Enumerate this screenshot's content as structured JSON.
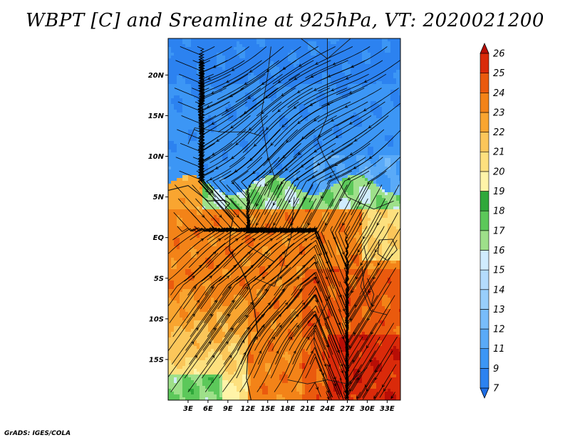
{
  "title": "WBPT [C] and Sreamline at 925hPa, VT: 2020021200",
  "credit": "GrADS: IGES/COLA",
  "map": {
    "lat_ticks": [
      "20N",
      "15N",
      "10N",
      "5N",
      "EQ",
      "5S",
      "10S",
      "15S"
    ],
    "lon_ticks": [
      "3E",
      "6E",
      "9E",
      "12E",
      "15E",
      "18E",
      "21E",
      "24E",
      "27E",
      "30E",
      "33E"
    ],
    "lon_range": [
      0,
      35
    ],
    "lat_range": [
      -20,
      24.5
    ]
  },
  "colorbar": {
    "levels": [
      "7",
      "9",
      "11",
      "12",
      "13",
      "14",
      "15",
      "16",
      "17",
      "18",
      "19",
      "20",
      "21",
      "22",
      "23",
      "24",
      "25",
      "26"
    ],
    "colors": [
      "#1e6ee6",
      "#2c82f0",
      "#3c96f5",
      "#5aaaf8",
      "#78bcfa",
      "#98cefc",
      "#b4dcfd",
      "#d0ecfe",
      "#9ee08a",
      "#5cc85a",
      "#2fa83a",
      "#fff4a8",
      "#fde07e",
      "#fbc65a",
      "#f9a530",
      "#f38318",
      "#ea5a0e",
      "#da2a0a",
      "#b80e06"
    ],
    "extend": "both"
  }
}
